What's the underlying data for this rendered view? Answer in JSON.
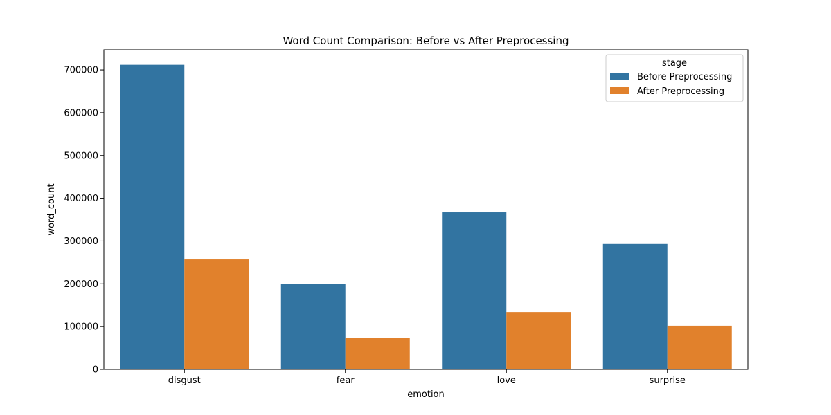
{
  "chart_data": {
    "type": "bar",
    "title": "Word Count Comparison: Before vs After Preprocessing",
    "xlabel": "emotion",
    "ylabel": "word_count",
    "categories": [
      "disgust",
      "fear",
      "love",
      "surprise"
    ],
    "series": [
      {
        "name": "Before Preprocessing",
        "color": "#3274a1",
        "values": [
          712000,
          199000,
          367000,
          293000
        ]
      },
      {
        "name": "After Preprocessing",
        "color": "#e1812c",
        "values": [
          257000,
          73000,
          134000,
          102000
        ]
      }
    ],
    "ylim": [
      0,
      747000
    ],
    "yticks": [
      0,
      100000,
      200000,
      300000,
      400000,
      500000,
      600000,
      700000
    ],
    "ytick_labels": [
      "0",
      "100000",
      "200000",
      "300000",
      "400000",
      "500000",
      "600000",
      "700000"
    ],
    "grid": false,
    "legend": {
      "title": "stage",
      "placement": "top-right"
    }
  }
}
